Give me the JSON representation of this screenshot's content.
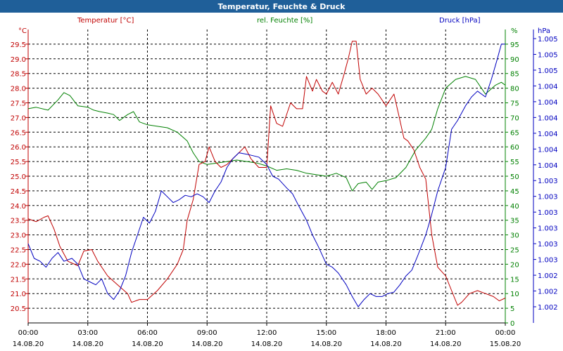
{
  "window": {
    "title": "Temperatur, Feuchte & Druck"
  },
  "colors": {
    "title_bar": "#1f5f99",
    "temperature": "#c00000",
    "humidity": "#008000",
    "pressure": "#0000c0"
  },
  "chart_data": {
    "type": "line",
    "title": "Temperatur, Feuchte & Druck",
    "grid": true,
    "x_ticks": [
      {
        "time": "00:00",
        "date": "14.08.20"
      },
      {
        "time": "03:00",
        "date": "14.08.20"
      },
      {
        "time": "06:00",
        "date": "14.08.20"
      },
      {
        "time": "09:00",
        "date": "14.08.20"
      },
      {
        "time": "12:00",
        "date": "14.08.20"
      },
      {
        "time": "15:00",
        "date": "14.08.20"
      },
      {
        "time": "18:00",
        "date": "14.08.20"
      },
      {
        "time": "21:00",
        "date": "14.08.20"
      },
      {
        "time": "00:00",
        "date": "15.08.20"
      }
    ],
    "xlim_hours": [
      0,
      24
    ],
    "axes": {
      "temperature": {
        "label": "Temperatur [°C]",
        "unit": "°C",
        "ylim": [
          20.0,
          30.0
        ],
        "ticks": [
          "20.5",
          "21.0",
          "21.5",
          "22.0",
          "22.5",
          "23.0",
          "23.5",
          "24.0",
          "24.5",
          "25.0",
          "25.5",
          "26.0",
          "26.5",
          "27.0",
          "27.5",
          "28.0",
          "28.5",
          "29.0",
          "29.5"
        ]
      },
      "humidity": {
        "label": "rel. Feuchte [%]",
        "unit": "%",
        "ylim": [
          0,
          100
        ],
        "ticks": [
          "0",
          "5",
          "10",
          "15",
          "20",
          "25",
          "30",
          "35",
          "40",
          "45",
          "50",
          "55",
          "60",
          "65",
          "70",
          "75",
          "80",
          "85",
          "90",
          "95"
        ]
      },
      "pressure": {
        "label": "Druck [hPa]",
        "unit": "hPa",
        "ticks": [
          "1.002",
          "1.002",
          "1.002",
          "1.003",
          "1.003",
          "1.003",
          "1.003",
          "1.003",
          "1.003",
          "1.004",
          "1.004",
          "1.004",
          "1.004",
          "1.004",
          "1.004",
          "1.005",
          "1.005",
          "1.005"
        ]
      }
    },
    "series": [
      {
        "name": "Temperatur [°C]",
        "axis": "temperature",
        "points": [
          [
            0,
            23.55
          ],
          [
            0.4,
            23.45
          ],
          [
            0.8,
            23.6
          ],
          [
            1.0,
            23.65
          ],
          [
            1.3,
            23.2
          ],
          [
            1.6,
            22.6
          ],
          [
            2.0,
            22.1
          ],
          [
            2.5,
            21.95
          ],
          [
            2.8,
            22.45
          ],
          [
            3.2,
            22.5
          ],
          [
            3.5,
            22.1
          ],
          [
            4.0,
            21.6
          ],
          [
            4.5,
            21.3
          ],
          [
            5.0,
            21.0
          ],
          [
            5.2,
            20.7
          ],
          [
            5.6,
            20.8
          ],
          [
            6.0,
            20.8
          ],
          [
            6.5,
            21.1
          ],
          [
            7.0,
            21.5
          ],
          [
            7.5,
            22.0
          ],
          [
            7.8,
            22.5
          ],
          [
            8.0,
            23.5
          ],
          [
            8.3,
            24.2
          ],
          [
            8.6,
            25.4
          ],
          [
            8.9,
            25.5
          ],
          [
            9.1,
            26.0
          ],
          [
            9.4,
            25.5
          ],
          [
            9.7,
            25.3
          ],
          [
            10.0,
            25.4
          ],
          [
            10.3,
            25.6
          ],
          [
            10.6,
            25.8
          ],
          [
            10.9,
            26.0
          ],
          [
            11.2,
            25.6
          ],
          [
            11.6,
            25.3
          ],
          [
            12.0,
            25.3
          ],
          [
            12.2,
            27.4
          ],
          [
            12.5,
            26.8
          ],
          [
            12.8,
            26.7
          ],
          [
            13.2,
            27.5
          ],
          [
            13.5,
            27.3
          ],
          [
            13.8,
            27.3
          ],
          [
            14.0,
            28.4
          ],
          [
            14.3,
            27.9
          ],
          [
            14.5,
            28.3
          ],
          [
            14.8,
            27.9
          ],
          [
            15.0,
            27.8
          ],
          [
            15.3,
            28.2
          ],
          [
            15.6,
            27.8
          ],
          [
            15.9,
            28.5
          ],
          [
            16.1,
            29.0
          ],
          [
            16.3,
            29.6
          ],
          [
            16.5,
            29.6
          ],
          [
            16.7,
            28.3
          ],
          [
            17.0,
            27.8
          ],
          [
            17.3,
            28.0
          ],
          [
            17.6,
            27.8
          ],
          [
            18.0,
            27.4
          ],
          [
            18.4,
            27.8
          ],
          [
            18.6,
            27.2
          ],
          [
            18.9,
            26.3
          ],
          [
            19.1,
            26.2
          ],
          [
            19.4,
            25.9
          ],
          [
            19.7,
            25.3
          ],
          [
            20.0,
            24.9
          ],
          [
            20.3,
            23.0
          ],
          [
            20.6,
            21.9
          ],
          [
            21.0,
            21.6
          ],
          [
            21.3,
            21.1
          ],
          [
            21.6,
            20.6
          ],
          [
            21.8,
            20.7
          ],
          [
            22.2,
            21.0
          ],
          [
            22.6,
            21.1
          ],
          [
            23.0,
            21.0
          ],
          [
            23.4,
            20.9
          ],
          [
            23.7,
            20.75
          ],
          [
            24.0,
            20.85
          ]
        ]
      },
      {
        "name": "rel. Feuchte [%]",
        "axis": "humidity",
        "points": [
          [
            0,
            73
          ],
          [
            0.4,
            73.5
          ],
          [
            1.0,
            72.5
          ],
          [
            1.5,
            76
          ],
          [
            1.8,
            78.5
          ],
          [
            2.1,
            77.5
          ],
          [
            2.5,
            74
          ],
          [
            3.0,
            73.5
          ],
          [
            3.3,
            72.5
          ],
          [
            3.6,
            72
          ],
          [
            4.0,
            71.5
          ],
          [
            4.3,
            71
          ],
          [
            4.6,
            69
          ],
          [
            5.0,
            71
          ],
          [
            5.3,
            72
          ],
          [
            5.6,
            68.5
          ],
          [
            6.0,
            67.5
          ],
          [
            6.5,
            67
          ],
          [
            7.0,
            66.5
          ],
          [
            7.5,
            65
          ],
          [
            8.0,
            62
          ],
          [
            8.3,
            58
          ],
          [
            8.6,
            55
          ],
          [
            9.0,
            54
          ],
          [
            9.5,
            54.5
          ],
          [
            10.0,
            55
          ],
          [
            10.5,
            55.5
          ],
          [
            11.0,
            55
          ],
          [
            11.5,
            54.5
          ],
          [
            12.0,
            53.5
          ],
          [
            12.5,
            52
          ],
          [
            13.0,
            52.5
          ],
          [
            13.5,
            52
          ],
          [
            14.0,
            51
          ],
          [
            14.5,
            50.5
          ],
          [
            15.0,
            50
          ],
          [
            15.5,
            51
          ],
          [
            16.0,
            49.5
          ],
          [
            16.3,
            45
          ],
          [
            16.6,
            47.5
          ],
          [
            17.0,
            48
          ],
          [
            17.3,
            45.5
          ],
          [
            17.6,
            48
          ],
          [
            18.0,
            48.5
          ],
          [
            18.5,
            49.5
          ],
          [
            19.0,
            53
          ],
          [
            19.5,
            59
          ],
          [
            20.0,
            63
          ],
          [
            20.3,
            66
          ],
          [
            20.6,
            73
          ],
          [
            21.0,
            80
          ],
          [
            21.5,
            83
          ],
          [
            22.0,
            84
          ],
          [
            22.5,
            83
          ],
          [
            23.0,
            78
          ],
          [
            23.5,
            81
          ],
          [
            23.8,
            82
          ],
          [
            24.0,
            81
          ]
        ]
      },
      {
        "name": "Druck [hPa]",
        "axis": "pressure",
        "points": [
          [
            0,
            22.7
          ],
          [
            0.3,
            22.2
          ],
          [
            0.6,
            22.1
          ],
          [
            0.9,
            21.9
          ],
          [
            1.2,
            22.2
          ],
          [
            1.5,
            22.4
          ],
          [
            1.8,
            22.1
          ],
          [
            2.2,
            22.2
          ],
          [
            2.5,
            22.0
          ],
          [
            2.8,
            21.5
          ],
          [
            3.1,
            21.4
          ],
          [
            3.4,
            21.3
          ],
          [
            3.7,
            21.5
          ],
          [
            4.0,
            21.0
          ],
          [
            4.3,
            20.8
          ],
          [
            4.6,
            21.1
          ],
          [
            4.9,
            21.6
          ],
          [
            5.2,
            22.4
          ],
          [
            5.5,
            23.0
          ],
          [
            5.8,
            23.6
          ],
          [
            6.1,
            23.4
          ],
          [
            6.4,
            23.8
          ],
          [
            6.7,
            24.5
          ],
          [
            7.0,
            24.3
          ],
          [
            7.3,
            24.1
          ],
          [
            7.6,
            24.2
          ],
          [
            7.9,
            24.35
          ],
          [
            8.2,
            24.3
          ],
          [
            8.5,
            24.4
          ],
          [
            8.8,
            24.3
          ],
          [
            9.1,
            24.1
          ],
          [
            9.4,
            24.5
          ],
          [
            9.7,
            24.8
          ],
          [
            10.0,
            25.3
          ],
          [
            10.3,
            25.6
          ],
          [
            10.6,
            25.8
          ],
          [
            11.0,
            25.75
          ],
          [
            11.3,
            25.7
          ],
          [
            11.6,
            25.65
          ],
          [
            12.0,
            25.4
          ],
          [
            12.3,
            25.0
          ],
          [
            12.6,
            24.9
          ],
          [
            13.0,
            24.6
          ],
          [
            13.3,
            24.4
          ],
          [
            13.6,
            24.0
          ],
          [
            14.0,
            23.5
          ],
          [
            14.3,
            23.0
          ],
          [
            14.6,
            22.6
          ],
          [
            15.0,
            22.0
          ],
          [
            15.3,
            21.9
          ],
          [
            15.6,
            21.7
          ],
          [
            16.0,
            21.3
          ],
          [
            16.3,
            20.9
          ],
          [
            16.6,
            20.55
          ],
          [
            16.9,
            20.8
          ],
          [
            17.2,
            21.0
          ],
          [
            17.5,
            20.9
          ],
          [
            17.8,
            20.9
          ],
          [
            18.1,
            21.0
          ],
          [
            18.4,
            21.05
          ],
          [
            18.7,
            21.3
          ],
          [
            19.0,
            21.6
          ],
          [
            19.3,
            21.8
          ],
          [
            19.6,
            22.3
          ],
          [
            20.0,
            23.0
          ],
          [
            20.3,
            23.7
          ],
          [
            20.6,
            24.5
          ],
          [
            21.0,
            25.3
          ],
          [
            21.3,
            26.6
          ],
          [
            21.6,
            26.9
          ],
          [
            22.0,
            27.4
          ],
          [
            22.3,
            27.7
          ],
          [
            22.6,
            27.9
          ],
          [
            23.0,
            27.7
          ],
          [
            23.3,
            28.3
          ],
          [
            23.6,
            29.0
          ],
          [
            23.8,
            29.5
          ],
          [
            24.0,
            29.5
          ]
        ]
      }
    ]
  }
}
